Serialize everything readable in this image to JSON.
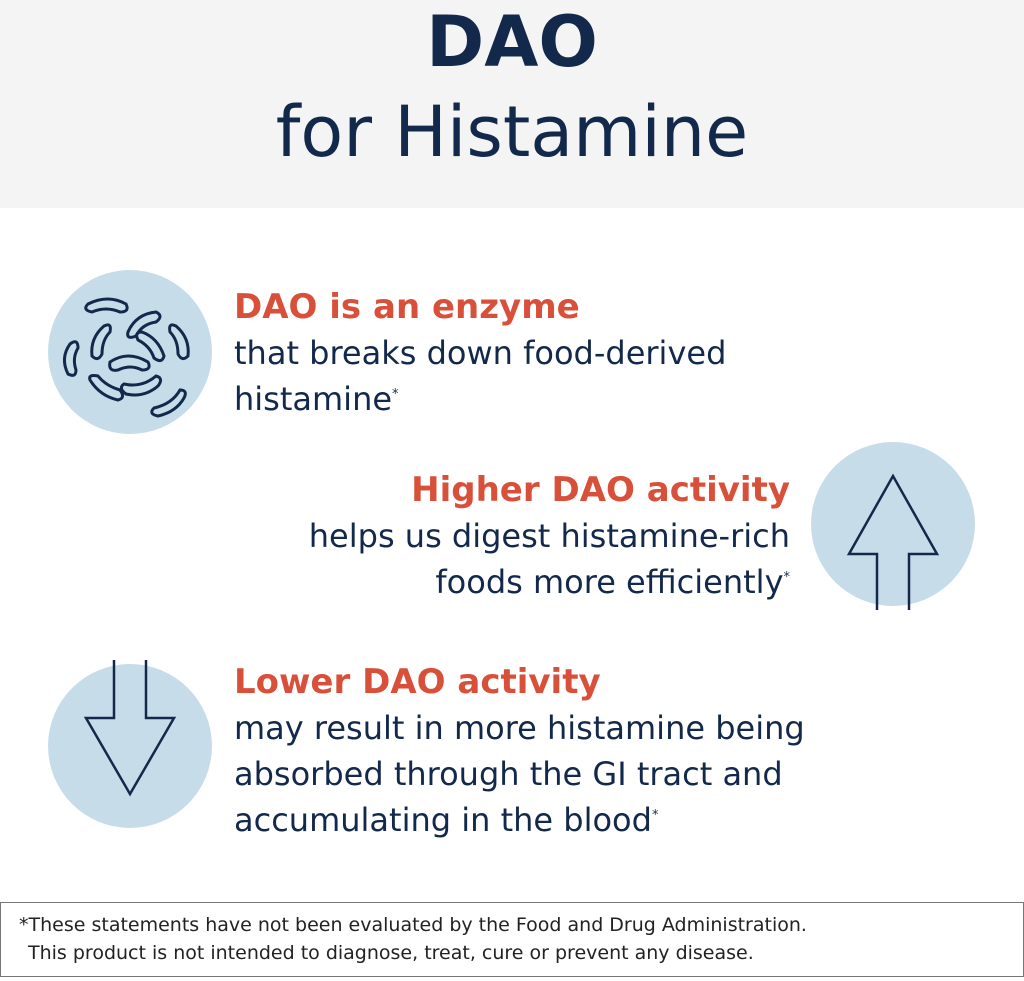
{
  "header": {
    "title_line1": "DAO",
    "title_line2": "for Histamine"
  },
  "sections": [
    {
      "icon": "enzyme-bacteria-icon",
      "heading": "DAO is an enzyme",
      "lines": [
        "that breaks down food-derived",
        "histamine"
      ],
      "footnote_mark": "*"
    },
    {
      "icon": "arrow-up-icon",
      "heading": "Higher DAO activity",
      "lines": [
        "helps us digest histamine-rich",
        "foods more efficiently"
      ],
      "footnote_mark": "*"
    },
    {
      "icon": "arrow-down-icon",
      "heading": "Lower DAO activity",
      "lines": [
        "may result in more histamine being",
        "absorbed through the GI tract and",
        "accumulating in the blood"
      ],
      "footnote_mark": "*"
    }
  ],
  "disclaimer": {
    "line1": "*These statements have not been evaluated by the Food and Drug Administration.",
    "line2": "This product is not intended to diagnose, treat, cure or prevent any disease."
  },
  "colors": {
    "navy": "#13294b",
    "accent_red": "#d9503a",
    "circle_blue": "#c7dce9",
    "header_bg": "#f4f4f4"
  }
}
